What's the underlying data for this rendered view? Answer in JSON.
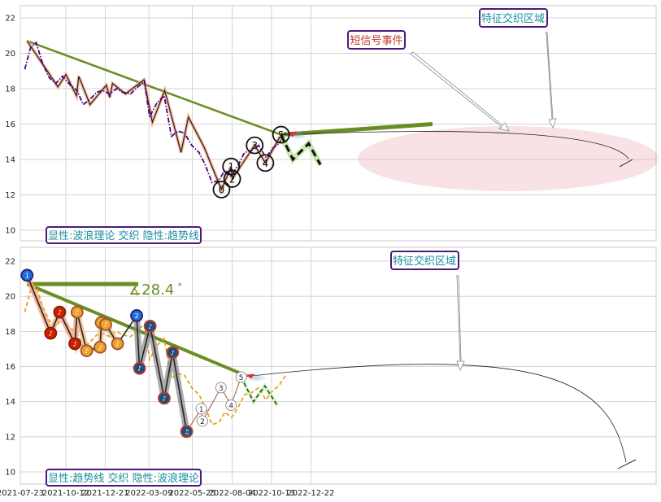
{
  "chart_data": [
    {
      "type": "line",
      "panel": "top",
      "ylim": [
        9.5,
        23
      ],
      "yticks": [
        "10",
        "12",
        "14",
        "16",
        "18",
        "20",
        "22"
      ],
      "grid": true,
      "x_dates": [
        "2021-07-31",
        "2021-08-10",
        "2021-08-20",
        "2021-09-01",
        "2021-09-13",
        "2021-09-24",
        "2021-10-06",
        "2021-10-20",
        "2021-11-01",
        "2021-11-12",
        "2021-11-24",
        "2021-12-06",
        "2021-12-17",
        "2021-12-29",
        "2022-01-10",
        "2022-01-21",
        "2022-02-04",
        "2022-02-17",
        "2022-03-01",
        "2022-03-10",
        "2022-03-23",
        "2022-04-05",
        "2022-04-18",
        "2022-04-29",
        "2022-05-11",
        "2022-05-24",
        "2022-06-06",
        "2022-06-17",
        "2022-06-29",
        "2022-07-11",
        "2022-07-22",
        "2022-08-03",
        "2022-08-15",
        "2022-08-26",
        "2022-09-07",
        "2022-09-20",
        "2022-10-03",
        "2022-10-14",
        "2022-10-26",
        "2022-11-07"
      ],
      "series": [
        {
          "color": "#4b0082",
          "style": "dashdot",
          "values": [
            19.1,
            20.3,
            20.6,
            19.4,
            18.6,
            18.3,
            18.7,
            18.2,
            17.9,
            17.1,
            17.4,
            17.8,
            17.9,
            17.7,
            18.0,
            17.8,
            17.7,
            18.1,
            18.4,
            16.4,
            17.2,
            17.6,
            15.3,
            15.6,
            15.5,
            14.8,
            14.4,
            13.7,
            12.7,
            12.8,
            13.4,
            13.1,
            13.7,
            14.4,
            14.5,
            14.8,
            14.1,
            14.6,
            14.9,
            15.5
          ]
        }
      ],
      "wave_points": [
        {
          "date": "2021-08-04",
          "value": 20.7
        },
        {
          "date": "2021-09-28",
          "value": 18.1
        },
        {
          "date": "2021-10-12",
          "value": 18.8
        },
        {
          "date": "2021-10-31",
          "value": 17.6
        },
        {
          "date": "2021-11-04",
          "value": 18.7
        },
        {
          "date": "2021-11-24",
          "value": 17.1
        },
        {
          "date": "2021-12-23",
          "value": 18.2
        },
        {
          "date": "2021-12-29",
          "value": 17.5
        },
        {
          "date": "2022-01-03",
          "value": 18.3
        },
        {
          "date": "2022-01-26",
          "value": 17.7
        },
        {
          "date": "2022-02-28",
          "value": 18.5
        },
        {
          "date": "2022-03-15",
          "value": 16.1
        },
        {
          "date": "2022-04-06",
          "value": 17.9
        },
        {
          "date": "2022-05-05",
          "value": 14.4
        },
        {
          "date": "2022-05-18",
          "value": 16.4
        },
        {
          "date": "2022-06-15",
          "value": 14.7
        },
        {
          "date": "2022-07-16",
          "value": 12.3
        },
        {
          "date": "2022-08-02",
          "value": 13.6
        },
        {
          "date": "2022-08-04",
          "value": 12.9
        },
        {
          "date": "2022-09-13",
          "value": 14.8
        },
        {
          "date": "2022-10-02",
          "value": 13.8
        },
        {
          "date": "2022-10-30",
          "value": 15.4
        }
      ],
      "wave_labels": [
        {
          "label": "0",
          "date": "2022-07-16",
          "value": 12.3
        },
        {
          "label": "1",
          "date": "2022-08-02",
          "value": 13.6
        },
        {
          "label": "2",
          "date": "2022-08-04",
          "value": 12.9
        },
        {
          "label": "3",
          "date": "2022-09-13",
          "value": 14.8
        },
        {
          "label": "4",
          "date": "2022-10-02",
          "value": 13.8
        },
        {
          "label": "5",
          "date": "2022-10-30",
          "value": 15.4
        }
      ],
      "projection": [
        {
          "date": "2022-10-30",
          "value": 15.4
        },
        {
          "date": "2022-11-20",
          "value": 14.0
        },
        {
          "date": "2022-12-18",
          "value": 14.9
        },
        {
          "date": "2023-01-08",
          "value": 13.7
        }
      ],
      "trend_line": [
        {
          "date": "2021-08-04",
          "value": 20.7
        },
        {
          "date": "2022-10-30",
          "value": 15.4
        }
      ],
      "annotations": [
        "短信号事件",
        "特征交织区域"
      ],
      "footer": "显性:波浪理论 交织 隐性:趋势线"
    },
    {
      "type": "line",
      "panel": "bottom",
      "ylim": [
        9.5,
        23
      ],
      "yticks": [
        "10",
        "12",
        "14",
        "16",
        "18",
        "20",
        "22"
      ],
      "xticks": [
        "2021-07-23",
        "2021-10-12",
        "2021-12-21",
        "2022-03-09",
        "2022-05-25",
        "2022-08-04",
        "2022-10-13",
        "2022-12-22"
      ],
      "grid": true,
      "angle_label": "28.4",
      "angle_unit": "°",
      "series": [
        {
          "color": "#e8a317",
          "style": "dashed",
          "values": [
            19.1,
            20.3,
            20.6,
            19.4,
            18.6,
            18.3,
            18.7,
            18.2,
            17.9,
            17.1,
            17.4,
            17.8,
            17.9,
            17.7,
            18.0,
            17.8,
            17.7,
            18.1,
            18.4,
            16.4,
            17.2,
            17.6,
            15.3,
            15.6,
            15.5,
            14.8,
            14.4,
            13.7,
            12.7,
            12.8,
            13.4,
            13.1,
            13.7,
            14.4,
            14.5,
            14.8,
            14.1,
            14.6,
            14.9,
            15.5
          ]
        }
      ],
      "markers": [
        {
          "label": "1",
          "kind": "blue",
          "date": "2021-08-04",
          "value": 21.2
        },
        {
          "label": "♪",
          "kind": "red",
          "date": "2021-09-15",
          "value": 17.9
        },
        {
          "label": "♪",
          "kind": "red",
          "date": "2021-10-01",
          "value": 19.1
        },
        {
          "label": "♪",
          "kind": "red",
          "date": "2021-10-28",
          "value": 17.3
        },
        {
          "label": "♪",
          "kind": "orange",
          "date": "2021-11-01",
          "value": 19.1
        },
        {
          "label": "♪",
          "kind": "orange",
          "date": "2021-11-18",
          "value": 16.9
        },
        {
          "label": "♪",
          "kind": "orange",
          "date": "2021-12-12",
          "value": 17.1
        },
        {
          "label": "♪",
          "kind": "orange",
          "date": "2021-12-14",
          "value": 18.5
        },
        {
          "label": "♪",
          "kind": "orange",
          "date": "2021-12-22",
          "value": 18.4
        },
        {
          "label": "♪",
          "kind": "orange",
          "date": "2022-01-12",
          "value": 17.3
        },
        {
          "label": "2",
          "kind": "blue",
          "date": "2022-02-15",
          "value": 18.9
        },
        {
          "label": "♪",
          "kind": "blue",
          "date": "2022-02-20",
          "value": 15.9
        },
        {
          "label": "♪",
          "kind": "blue",
          "date": "2022-03-11",
          "value": 18.3
        },
        {
          "label": "♪",
          "kind": "blue",
          "date": "2022-04-05",
          "value": 14.2
        },
        {
          "label": "♪",
          "kind": "blue",
          "date": "2022-04-20",
          "value": 16.8
        },
        {
          "label": "♫",
          "kind": "blue",
          "date": "2022-05-15",
          "value": 12.3
        }
      ],
      "wave_labels": [
        {
          "label": "1",
          "date": "2022-06-10",
          "value": 13.6
        },
        {
          "label": "2",
          "date": "2022-06-12",
          "value": 12.9
        },
        {
          "label": "3",
          "date": "2022-07-15",
          "value": 14.8
        },
        {
          "label": "4",
          "date": "2022-08-02",
          "value": 13.8
        },
        {
          "label": "5",
          "date": "2022-08-20",
          "value": 15.4
        }
      ],
      "projection": [
        {
          "date": "2022-08-20",
          "value": 15.4
        },
        {
          "date": "2022-09-11",
          "value": 14.0
        },
        {
          "date": "2022-10-01",
          "value": 14.9
        },
        {
          "date": "2022-10-23",
          "value": 13.8
        }
      ],
      "trend_line": [
        {
          "date": "2021-08-04",
          "value": 20.7
        },
        {
          "date": "2022-08-20",
          "value": 15.6
        }
      ],
      "annotations": [
        "特征交织区域"
      ],
      "footer": "显性:趋势线 交织 隐性:波浪理论"
    }
  ]
}
